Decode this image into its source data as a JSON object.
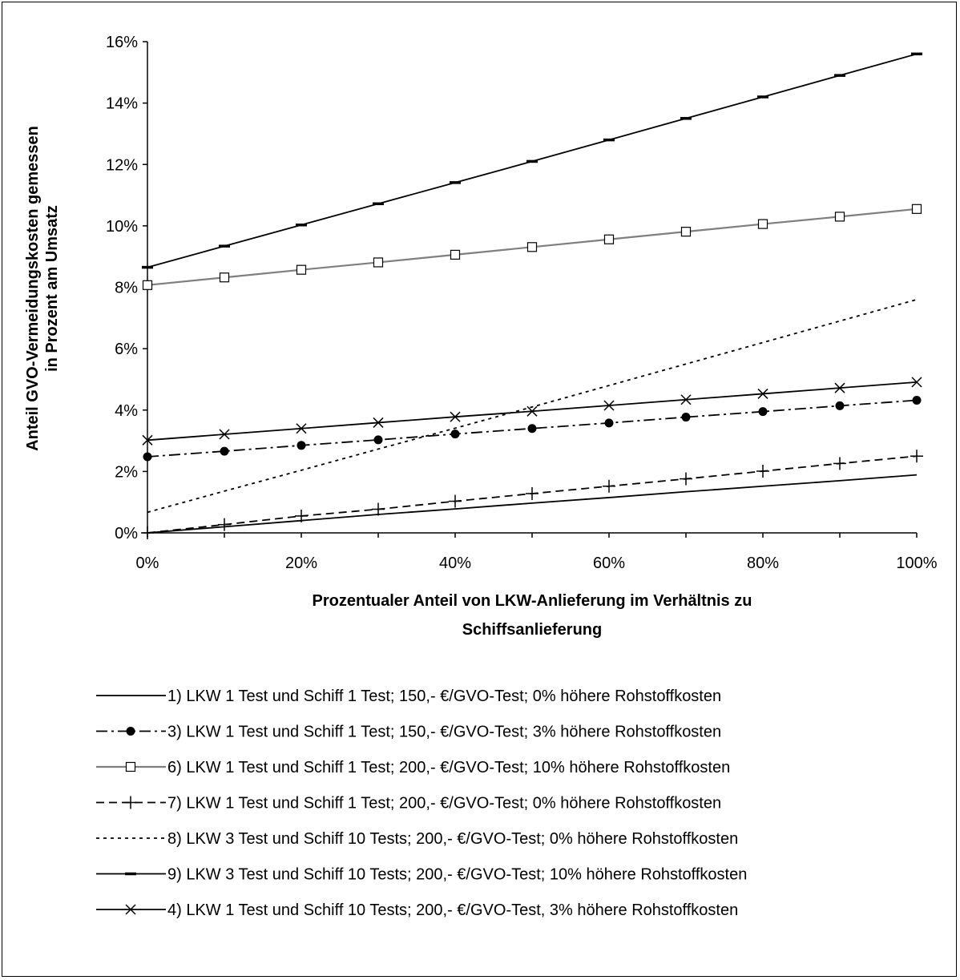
{
  "chart_data": {
    "type": "line",
    "xlabel": [
      "Prozentualer Anteil von LKW-Anlieferung im Verhältnis zu",
      "Schiffsanlieferung"
    ],
    "ylabel": [
      "Anteil GVO-Vermeidungskosten gemessen",
      "in Prozent am Umsatz"
    ],
    "x": [
      0,
      10,
      20,
      30,
      40,
      50,
      60,
      70,
      80,
      90,
      100
    ],
    "xlim": [
      0,
      100
    ],
    "ylim": [
      0,
      16
    ],
    "x_ticks": [
      "0%",
      "20%",
      "40%",
      "60%",
      "80%",
      "100%"
    ],
    "x_tick_values": [
      0,
      20,
      40,
      60,
      80,
      100
    ],
    "y_ticks": [
      "0%",
      "2%",
      "4%",
      "6%",
      "8%",
      "10%",
      "12%",
      "14%",
      "16%"
    ],
    "y_tick_values": [
      0,
      2,
      4,
      6,
      8,
      10,
      12,
      14,
      16
    ],
    "grid": false,
    "legend_position": "bottom",
    "series": [
      {
        "name": "1) LKW 1 Test und Schiff 1 Test; 150,- €/GVO-Test; 0% höhere Rohstoffkosten",
        "style": "solid",
        "marker": "none",
        "color": "#000000",
        "values": [
          0.0,
          0.2,
          0.4,
          0.6,
          0.78,
          0.97,
          1.15,
          1.34,
          1.52,
          1.7,
          1.89
        ]
      },
      {
        "name": "3) LKW 1 Test und Schiff 1 Test; 150,- €/GVO-Test; 3% höhere Rohstoffkosten",
        "style": "dashdot",
        "marker": "dot",
        "color": "#000000",
        "values": [
          2.48,
          2.66,
          2.85,
          3.03,
          3.22,
          3.4,
          3.58,
          3.77,
          3.95,
          4.14,
          4.32
        ]
      },
      {
        "name": "6) LKW 1 Test und Schiff 1 Test; 200,- €/GVO-Test; 10% höhere Rohstoffkosten",
        "style": "solid-gray",
        "marker": "square",
        "color": "#7f7f7f",
        "values": [
          8.07,
          8.32,
          8.57,
          8.81,
          9.06,
          9.31,
          9.56,
          9.81,
          10.06,
          10.3,
          10.55
        ]
      },
      {
        "name": "7) LKW 1 Test und Schiff 1 Test; 200,- €/GVO-Test; 0% höhere Rohstoffkosten",
        "style": "dashed",
        "marker": "plus",
        "color": "#000000",
        "values": [
          0.0,
          0.27,
          0.55,
          0.77,
          1.03,
          1.28,
          1.52,
          1.76,
          2.01,
          2.26,
          2.5
        ]
      },
      {
        "name": "8) LKW 3 Test und Schiff 10 Tests; 200,- €/GVO-Test; 0% höhere Rohstoffkosten",
        "style": "dotted",
        "marker": "none",
        "color": "#000000",
        "values": [
          0.67,
          1.36,
          2.04,
          2.73,
          3.41,
          4.1,
          4.8,
          5.5,
          6.2,
          6.9,
          7.6
        ]
      },
      {
        "name": "9) LKW 3 Test und Schiff 10 Tests; 200,- €/GVO-Test; 10% höhere Rohstoffkosten",
        "style": "solid",
        "marker": "dash",
        "color": "#000000",
        "values": [
          8.65,
          9.34,
          10.03,
          10.72,
          11.41,
          12.1,
          12.8,
          13.5,
          14.2,
          14.9,
          15.6
        ]
      },
      {
        "name": "4) LKW 1 Test und Schiff 10 Tests; 200,- €/GVO-Test, 3% höhere Rohstoffkosten",
        "style": "solid",
        "marker": "x",
        "color": "#000000",
        "values": [
          3.02,
          3.21,
          3.4,
          3.59,
          3.78,
          3.96,
          4.15,
          4.34,
          4.53,
          4.72,
          4.91
        ]
      }
    ]
  }
}
